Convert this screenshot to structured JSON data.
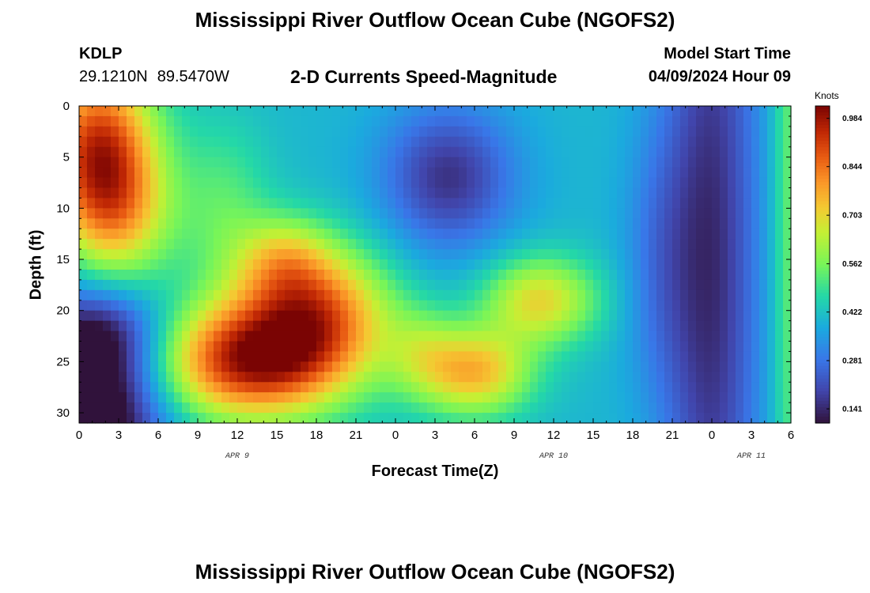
{
  "header": {
    "title": "Mississippi River Outflow Ocean Cube (NGOFS2)",
    "station_id": "KDLP",
    "latitude": "29.1210N",
    "longitude": "89.5470W",
    "subtitle": "2-D Currents Speed-Magnitude",
    "model_start_label": "Model Start Time",
    "model_start_value": "04/09/2024 Hour 09"
  },
  "footer": {
    "title": "Mississippi River Outflow Ocean Cube (NGOFS2)"
  },
  "chart_data": {
    "type": "heatmap",
    "xlabel": "Forecast Time(Z)",
    "ylabel": "Depth (ft)",
    "x_tick_labels": [
      "0",
      "3",
      "6",
      "9",
      "12",
      "15",
      "18",
      "21",
      "0",
      "3",
      "6",
      "9",
      "12",
      "15",
      "18",
      "21",
      "0",
      "3",
      "6"
    ],
    "x_ticks_hours": [
      0,
      3,
      6,
      9,
      12,
      15,
      18,
      21,
      24,
      27,
      30,
      33,
      36,
      39,
      42,
      45,
      48,
      51,
      54
    ],
    "xlim_hours": [
      0,
      54
    ],
    "date_labels": [
      {
        "label": "APR 9",
        "hour": 12
      },
      {
        "label": "APR 10",
        "hour": 36
      },
      {
        "label": "APR 11",
        "hour": 51
      }
    ],
    "y_ticks": [
      0,
      5,
      10,
      15,
      20,
      25,
      30
    ],
    "ylim": [
      0,
      31
    ],
    "y_inverted": true,
    "colorbar": {
      "unit_label": "Knots",
      "tick_labels": [
        "0.984",
        "0.844",
        "0.703",
        "0.562",
        "0.422",
        "0.281",
        "0.141"
      ],
      "tick_values": [
        0.984,
        0.844,
        0.703,
        0.562,
        0.422,
        0.281,
        0.141
      ],
      "range": [
        0.1,
        1.02
      ],
      "colormap": "turbo"
    },
    "hotspots": [
      {
        "hour": 1.5,
        "depth": 4,
        "sx": 3.0,
        "sy": 6.0,
        "amp": 0.5
      },
      {
        "hour": 3.0,
        "depth": 11,
        "sx": 3.0,
        "sy": 5.0,
        "amp": 0.25
      },
      {
        "hour": 13.0,
        "depth": 25,
        "sx": 5.0,
        "sy": 4.0,
        "amp": 0.55
      },
      {
        "hour": 18.0,
        "depth": 20,
        "sx": 4.0,
        "sy": 4.5,
        "amp": 0.4
      },
      {
        "hour": 15.5,
        "depth": 15,
        "sx": 2.5,
        "sy": 3.0,
        "amp": 0.2
      },
      {
        "hour": 30.0,
        "depth": 26,
        "sx": 3.0,
        "sy": 3.0,
        "amp": 0.35
      },
      {
        "hour": 35.0,
        "depth": 19,
        "sx": 3.0,
        "sy": 3.0,
        "amp": 0.3
      },
      {
        "hour": 26.0,
        "depth": 24,
        "sx": 2.0,
        "sy": 3.0,
        "amp": 0.12
      },
      {
        "hour": 11.0,
        "depth": 10,
        "sx": 2.5,
        "sy": 6.0,
        "amp": 0.12
      },
      {
        "hour": 48.0,
        "depth": 15,
        "sx": 2.5,
        "sy": 30.0,
        "amp": -0.25
      },
      {
        "hour": 28.0,
        "depth": 7,
        "sx": 3.5,
        "sy": 5.0,
        "amp": -0.24
      },
      {
        "hour": 0.5,
        "depth": 30,
        "sx": 4.0,
        "sy": 7.0,
        "amp": -0.45
      },
      {
        "hour": 2.0,
        "depth": 22,
        "sx": 3.0,
        "sy": 3.0,
        "amp": -0.15
      },
      {
        "hour": 44.0,
        "depth": 15,
        "sx": 2.0,
        "sy": 10.0,
        "amp": -0.1
      },
      {
        "hour": 54.0,
        "depth": 10,
        "sx": 1.0,
        "sy": 30.0,
        "amp": 0.15
      }
    ],
    "base_value": 0.4
  }
}
